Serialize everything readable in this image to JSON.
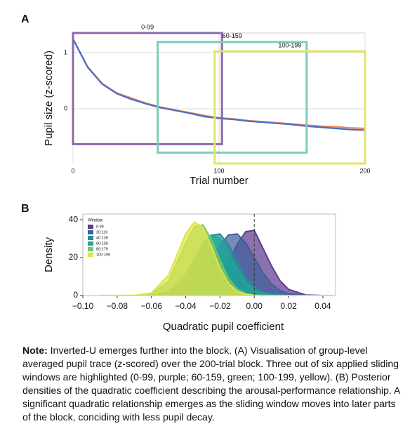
{
  "chart_data": [
    {
      "type": "line",
      "label": "A",
      "xlabel": "Trial number",
      "ylabel": "Pupil size (z-scored)",
      "xlim": [
        0,
        200
      ],
      "ylim": [
        -0.975,
        1.35
      ],
      "xticks": [
        0,
        100,
        200
      ],
      "yticks": [
        0,
        1
      ],
      "grid": true,
      "x": [
        0,
        10,
        20,
        30,
        40,
        50,
        60,
        70,
        80,
        90,
        100,
        110,
        120,
        130,
        140,
        150,
        160,
        170,
        180,
        190,
        200
      ],
      "series": [
        {
          "color": "#e8845a",
          "values": [
            1.25,
            0.75,
            0.45,
            0.28,
            0.19,
            0.1,
            0.03,
            -0.02,
            -0.07,
            -0.12,
            -0.16,
            -0.18,
            -0.21,
            -0.23,
            -0.25,
            -0.27,
            -0.29,
            -0.31,
            -0.32,
            -0.34,
            -0.35
          ]
        },
        {
          "color": "#4a6fc4",
          "values": [
            1.24,
            0.74,
            0.44,
            0.27,
            0.17,
            0.09,
            0.02,
            -0.03,
            -0.08,
            -0.14,
            -0.17,
            -0.19,
            -0.22,
            -0.24,
            -0.26,
            -0.28,
            -0.31,
            -0.33,
            -0.35,
            -0.37,
            -0.38
          ]
        }
      ],
      "windows": [
        {
          "label": "0-99",
          "color": "#8a6aa8",
          "x": [
            0,
            102
          ],
          "y": [
            -0.63,
            1.35
          ]
        },
        {
          "label": "60-159",
          "color": "#7ccdbb",
          "x": [
            58,
            160
          ],
          "y": [
            -0.78,
            1.19
          ]
        },
        {
          "label": "100-199",
          "color": "#e2e46a",
          "x": [
            97,
            200
          ],
          "y": [
            -0.975,
            1.025
          ]
        }
      ]
    },
    {
      "type": "density",
      "label": "B",
      "xlabel": "Quadratic pupil coefficient",
      "ylabel": "Density",
      "xlim": [
        -0.1,
        0.0474
      ],
      "ylim": [
        0,
        43
      ],
      "xticks": [
        {
          "value": -0.1,
          "label": "−0.10"
        },
        {
          "value": -0.08,
          "label": "−0.08"
        },
        {
          "value": -0.06,
          "label": "−0.06"
        },
        {
          "value": -0.04,
          "label": "−0.04"
        },
        {
          "value": -0.02,
          "label": "−0.02"
        },
        {
          "value": 0,
          "label": "0.00"
        },
        0.02,
        0.04
      ],
      "yticks": [
        0,
        20,
        40
      ],
      "refline": 0,
      "legend_title": "Window",
      "x": [
        -0.09,
        -0.08,
        -0.07,
        -0.06,
        -0.05,
        -0.04,
        -0.035,
        -0.03,
        -0.025,
        -0.02,
        -0.015,
        -0.01,
        -0.005,
        0,
        0.005,
        0.01,
        0.015,
        0.02,
        0.03,
        0.04,
        0.045
      ],
      "series": [
        {
          "name": "0:99",
          "color": "#5e3c8f",
          "values": [
            0,
            0,
            0,
            0,
            0,
            0.1,
            0.4,
            1.4,
            3.9,
            9.2,
            17.4,
            27,
            33.7,
            34.4,
            25,
            15.7,
            7.8,
            3.2,
            0.3,
            0,
            0
          ]
        },
        {
          "name": "20:119",
          "color": "#3f5f9c",
          "values": [
            0,
            0,
            0,
            0,
            0.2,
            2.2,
            5.2,
            10.7,
            18.4,
            26.4,
            32,
            32.5,
            27.8,
            20,
            12.1,
            6.2,
            2.6,
            0.9,
            0.1,
            0,
            0
          ]
        },
        {
          "name": "40:139",
          "color": "#2a8a98",
          "values": [
            0,
            0,
            0,
            0.1,
            1.3,
            8.6,
            16.4,
            25.3,
            31.8,
            32.5,
            27,
            18.3,
            9.9,
            4.5,
            1.6,
            0.5,
            0.1,
            0,
            0,
            0,
            0
          ]
        },
        {
          "name": "60:159",
          "color": "#1fa79a",
          "values": [
            0,
            0,
            0,
            0.2,
            2,
            11.2,
            19.4,
            27.5,
            32,
            30,
            22.7,
            14.4,
            7.2,
            2.9,
            1,
            0.3,
            0.1,
            0,
            0,
            0,
            0
          ]
        },
        {
          "name": "80:179",
          "color": "#72c86a",
          "values": [
            0,
            0,
            0,
            0.8,
            7.5,
            27.6,
            36.3,
            37.2,
            29.7,
            18.5,
            9,
            3.4,
            1,
            0.2,
            0,
            0,
            0,
            0,
            0,
            0,
            0
          ]
        },
        {
          "name": "100:199",
          "color": "#e3e346",
          "values": [
            0,
            0,
            0.1,
            1.3,
            10.8,
            32.6,
            38.8,
            36,
            26,
            14.6,
            6.4,
            2.2,
            0.6,
            0.1,
            0,
            0,
            0,
            0,
            0,
            0,
            0
          ]
        }
      ]
    }
  ],
  "note": {
    "lead": "Note:",
    "text": "Inverted-U emerges further into the block. (A) Visualisation of group-level averaged pupil trace (z-scored) over the 200-trial block. Three out of six applied sliding windows are highlighted (0-99, purple; 60-159, green; 100-199, yellow). (B) Posterior densities of the quadratic coefficient describing the arousal-performance relationship. A significant quadratic relationship emerges as the sliding window moves into later parts of the block, conciding with less pupil decay."
  }
}
